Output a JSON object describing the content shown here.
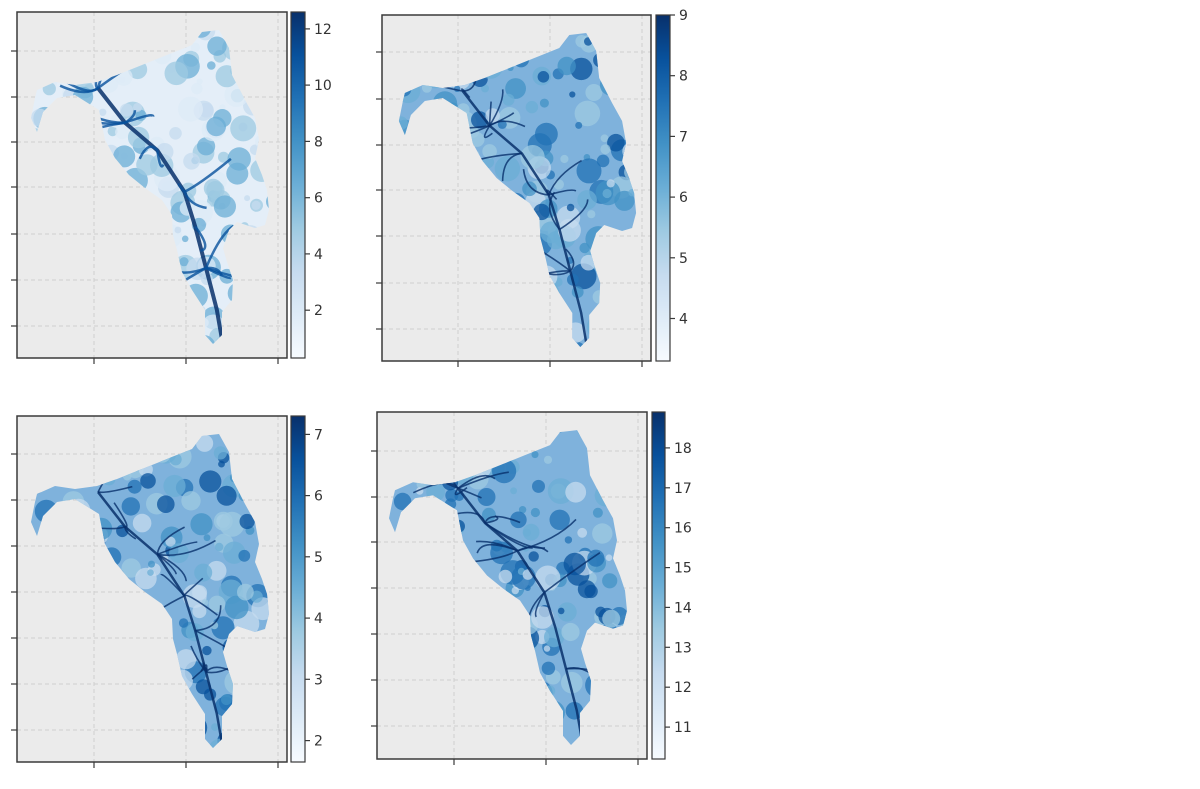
{
  "palette": {
    "panel_bg": "#ebebeb",
    "grid": "#cfcfcf",
    "frame": "#3a3a3a",
    "map_light": "#dbe8f5",
    "map_dark": "#08306b",
    "ramp": [
      "#f7fbff",
      "#deebf7",
      "#c6dbef",
      "#9ecae1",
      "#6baed6",
      "#4292c6",
      "#2171b5",
      "#08519c",
      "#08306b"
    ]
  },
  "chart_data": [
    {
      "type": "heatmap",
      "name": "panel-1",
      "grid": true,
      "legend": "right colorbar",
      "colorbar": {
        "colormap": "Blues",
        "range": [
          0.3,
          12.6
        ],
        "ticks": [
          2,
          4,
          6,
          8,
          10,
          12
        ],
        "tick_labels": [
          "2",
          "4",
          "6",
          "8",
          "10",
          "12"
        ]
      }
    },
    {
      "type": "heatmap",
      "name": "panel-2",
      "grid": true,
      "legend": "right colorbar",
      "colorbar": {
        "colormap": "Blues",
        "range": [
          3.3,
          9.0
        ],
        "ticks": [
          4,
          5,
          6,
          7,
          8,
          9
        ],
        "tick_labels": [
          "4",
          "5",
          "6",
          "7",
          "8",
          "9"
        ]
      }
    },
    {
      "type": "heatmap",
      "name": "panel-3",
      "grid": true,
      "legend": "right colorbar",
      "colorbar": {
        "colormap": "Blues",
        "range": [
          1.65,
          7.3
        ],
        "ticks": [
          2,
          3,
          4,
          5,
          6,
          7
        ],
        "tick_labels": [
          "2",
          "3",
          "4",
          "5",
          "6",
          "7"
        ]
      }
    },
    {
      "type": "heatmap",
      "name": "panel-4",
      "grid": true,
      "legend": "right colorbar",
      "colorbar": {
        "colormap": "Blues",
        "range": [
          10.2,
          18.9
        ],
        "ticks": [
          11,
          12,
          13,
          14,
          15,
          16,
          17,
          18
        ],
        "tick_labels": [
          "11",
          "12",
          "13",
          "14",
          "15",
          "16",
          "17",
          "18"
        ]
      }
    }
  ]
}
